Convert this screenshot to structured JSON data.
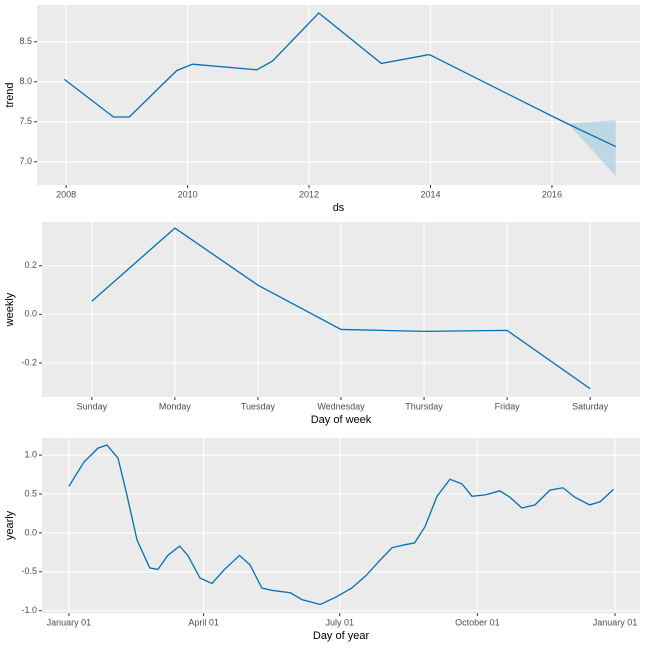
{
  "chart_data": [
    {
      "type": "line",
      "x_label": "ds",
      "y_label": "trend",
      "x": [
        2007.97,
        2008.78,
        2009.04,
        2009.82,
        2010.08,
        2011.14,
        2011.4,
        2012.16,
        2013.19,
        2013.98,
        2016.03,
        2016.3,
        2017.05
      ],
      "values": [
        8.03,
        7.56,
        7.56,
        8.14,
        8.22,
        8.15,
        8.26,
        8.86,
        8.23,
        8.34,
        7.56,
        7.46,
        7.19
      ],
      "lower": [
        null,
        null,
        null,
        null,
        null,
        null,
        null,
        null,
        null,
        null,
        null,
        7.45,
        6.82
      ],
      "upper": [
        null,
        null,
        null,
        null,
        null,
        null,
        null,
        null,
        null,
        null,
        null,
        7.48,
        7.52
      ],
      "color": "#0072B2",
      "band_color": "#9ecae1",
      "xlim": [
        2007.52,
        2017.45
      ],
      "ylim": [
        6.71,
        8.96
      ],
      "xticks": [
        2008,
        2010,
        2012,
        2014,
        2016
      ],
      "yticks": [
        {
          "value": 7,
          "label": "7.0"
        },
        7.5,
        {
          "value": 8,
          "label": "8.0"
        },
        8.5
      ],
      "grid": true
    },
    {
      "type": "line",
      "x_label": "Day of week",
      "y_label": "weekly",
      "categories": [
        "Sunday",
        "Monday",
        "Tuesday",
        "Wednesday",
        "Thursday",
        "Friday",
        "Saturday"
      ],
      "values": [
        0.054,
        0.355,
        0.12,
        -0.062,
        -0.07,
        -0.066,
        -0.306
      ],
      "color": "#0072B2",
      "ylim": [
        -0.34,
        0.38
      ],
      "yticks": [
        -0.2,
        {
          "value": 0,
          "label": "0.0"
        },
        0.2
      ],
      "grid": true
    },
    {
      "type": "line",
      "x_label": "Day of year",
      "y_label": "yearly",
      "x": [
        0,
        10,
        19.4,
        25.4,
        32.8,
        38,
        45.5,
        54,
        59.5,
        66,
        74,
        79.5,
        87.6,
        95.6,
        104,
        114,
        121,
        129,
        136,
        148,
        156,
        168,
        178,
        189,
        198.5,
        208,
        216,
        225,
        231,
        238,
        246,
        254.7,
        262.7,
        269.4,
        278.7,
        288,
        294.7,
        302.8,
        311.5,
        321.5,
        330.2,
        338,
        348,
        355,
        364
      ],
      "values": [
        0.6,
        0.91,
        1.09,
        1.13,
        0.96,
        0.55,
        -0.09,
        -0.45,
        -0.47,
        -0.29,
        -0.17,
        -0.29,
        -0.58,
        -0.65,
        -0.47,
        -0.29,
        -0.41,
        -0.71,
        -0.74,
        -0.77,
        -0.86,
        -0.92,
        -0.83,
        -0.71,
        -0.55,
        -0.35,
        -0.19,
        -0.15,
        -0.13,
        0.08,
        0.47,
        0.69,
        0.63,
        0.47,
        0.49,
        0.54,
        0.46,
        0.32,
        0.36,
        0.55,
        0.58,
        0.46,
        0.36,
        0.4,
        0.56
      ],
      "color": "#0072B2",
      "xlim": [
        -18,
        381.7
      ],
      "ylim": [
        -1.03,
        1.22
      ],
      "xticks": [
        {
          "value": 0,
          "label": "January 01"
        },
        {
          "value": 90,
          "label": "April 01"
        },
        {
          "value": 181,
          "label": "July 01"
        },
        {
          "value": 273,
          "label": "October 01"
        },
        {
          "value": 365,
          "label": "January 01"
        }
      ],
      "yticks": [
        {
          "value": -1,
          "label": "-1.0"
        },
        -0.5,
        {
          "value": 0,
          "label": "0.0"
        },
        0.5,
        {
          "value": 1,
          "label": "1.0"
        }
      ],
      "grid": true
    }
  ]
}
